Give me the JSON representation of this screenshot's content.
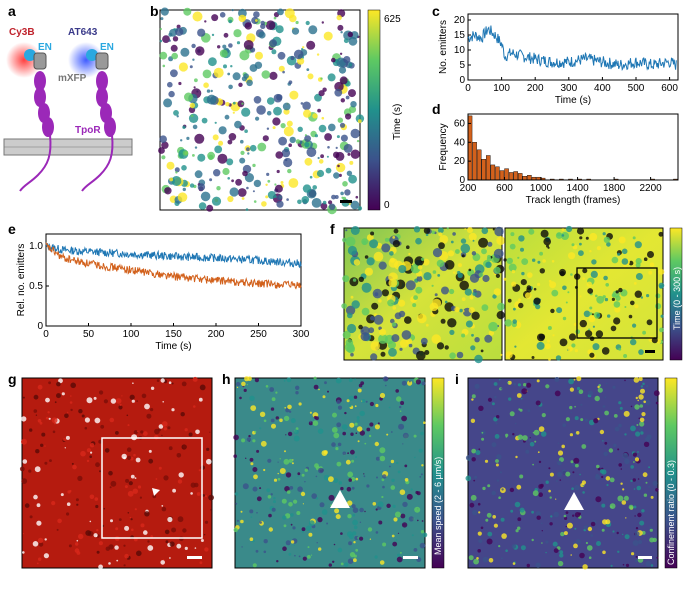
{
  "panels": {
    "a": {
      "label": "a",
      "dye1": "Cy3B",
      "dye2": "AT643",
      "en1": "EN",
      "en2": "EN",
      "mxfp": "mXFP",
      "tpor": "TpoR",
      "colors": {
        "cy3b": "#c0232d",
        "at643": "#3a3a8a",
        "en": "#2aa8e0",
        "tpor": "#9b28b8"
      }
    },
    "b": {
      "label": "b",
      "colorbar_max": "625",
      "colorbar_min": "0",
      "colorbar_title": "Time (s)"
    },
    "c": {
      "label": "c"
    },
    "d": {
      "label": "d"
    },
    "e": {
      "label": "e"
    },
    "f": {
      "label": "f",
      "colorbar_title": "Time (0 - 300 s)"
    },
    "g": {
      "label": "g"
    },
    "h": {
      "label": "h",
      "colorbar_title": "Mean speed (2 - 6 µm/s)"
    },
    "i": {
      "label": "i",
      "colorbar_title": "Confinement ratio (0 - 0.3)"
    }
  },
  "chart_data": [
    {
      "id": "c",
      "type": "line",
      "xlabel": "Time (s)",
      "ylabel": "No. emitters",
      "xlim": [
        0,
        625
      ],
      "ylim": [
        0,
        22
      ],
      "xticks": [
        "0",
        "100",
        "200",
        "300",
        "400",
        "500",
        "600"
      ],
      "yticks": [
        "0",
        "5",
        "10",
        "15",
        "20"
      ],
      "color": "#1f77b4",
      "x": [
        0,
        20,
        40,
        60,
        80,
        100,
        110,
        130,
        160,
        200,
        250,
        300,
        350,
        400,
        450,
        500,
        550,
        600,
        620
      ],
      "y": [
        14,
        15,
        14,
        17,
        15,
        12,
        8,
        9,
        8,
        7,
        6,
        6,
        7,
        6,
        5,
        6,
        5,
        6,
        5
      ]
    },
    {
      "id": "d",
      "type": "bar",
      "xlabel": "Track length (frames)",
      "ylabel": "Frequency",
      "xlim": [
        200,
        2500
      ],
      "ylim": [
        0,
        70
      ],
      "xticks": [
        "200",
        "600",
        "1000",
        "1400",
        "1800",
        "2200"
      ],
      "yticks": [
        "0",
        "20",
        "40",
        "60"
      ],
      "color": "#d2611c",
      "bin_width": 50,
      "x": [
        200,
        250,
        300,
        350,
        400,
        450,
        500,
        550,
        600,
        650,
        700,
        750,
        800,
        850,
        900,
        950,
        1000,
        1100,
        1200,
        1300,
        1400,
        1500,
        1800,
        2200,
        2450
      ],
      "values": [
        68,
        40,
        32,
        22,
        26,
        16,
        14,
        10,
        12,
        8,
        9,
        7,
        4,
        5,
        3,
        3,
        2,
        1,
        1,
        1,
        1,
        1,
        1,
        1,
        1
      ]
    },
    {
      "id": "e",
      "type": "line",
      "xlabel": "Time (s)",
      "ylabel": "Rel. no. emitters",
      "xlim": [
        0,
        300
      ],
      "ylim": [
        0,
        1.15
      ],
      "xticks": [
        "0",
        "50",
        "100",
        "150",
        "200",
        "250",
        "300"
      ],
      "yticks": [
        "0",
        "0.5",
        "1.0"
      ],
      "series": [
        {
          "color": "#1f77b4",
          "x": [
            0,
            20,
            50,
            100,
            150,
            200,
            250,
            300
          ],
          "values": [
            1.0,
            0.95,
            0.93,
            0.9,
            0.87,
            0.85,
            0.82,
            0.78
          ]
        },
        {
          "color": "#d2611c",
          "x": [
            0,
            20,
            50,
            100,
            150,
            200,
            250,
            300
          ],
          "values": [
            1.0,
            0.85,
            0.78,
            0.7,
            0.62,
            0.57,
            0.53,
            0.5
          ]
        }
      ]
    }
  ]
}
